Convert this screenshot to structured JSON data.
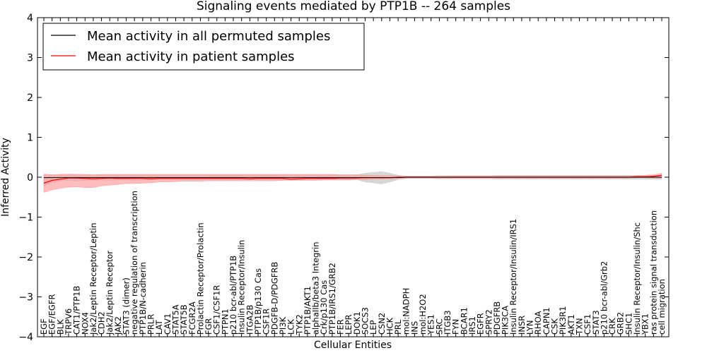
{
  "chart_data": {
    "type": "line",
    "title": "Signaling events mediated by PTP1B -- 264 samples",
    "xlabel": "Cellular Entities",
    "ylabel": "Inferred Activity",
    "ylim": [
      -4,
      4
    ],
    "yticks": [
      -4,
      -3,
      -2,
      -1,
      0,
      1,
      2,
      3,
      4
    ],
    "ytick_labels": [
      "−4",
      "−3",
      "−2",
      "−1",
      "0",
      "1",
      "2",
      "3",
      "4"
    ],
    "legend": {
      "position": "top-left",
      "entries": [
        {
          "label": "Mean activity in all permuted samples",
          "color": "#000000"
        },
        {
          "label": "Mean activity in patient samples",
          "color": "#ff0000"
        }
      ]
    },
    "categories": [
      "EGF",
      "EGF/EGFR",
      "BLK",
      "TRPV6",
      "CAT1/PTP1B",
      "NOX4",
      "Jak2/Leptin Receptor/Leptin",
      "CDH2",
      "Jak2/Leptin Receptor",
      "JAK2",
      "STAT3 (dimer)",
      "negative regulation of transcription",
      "PTP1B/N-cadherin",
      "PRLR",
      "LAT",
      "CAV1",
      "STAT5A",
      "STAT5B",
      "FCGR2A",
      "Prolactin Receptor/Prolactin",
      "FGR",
      "CSF1/CSF1R",
      "PTPN1",
      "p210 bcr-abl/PTP1B",
      "Insulin Receptor/Insulin",
      "ITGA2B",
      "PTP1B/p130 Cas",
      "CSF1R",
      "PDGFB-D/PDGFRB",
      "PI3K",
      "LCK",
      "TYK2",
      "PTP1B/AKT1",
      "alphaIIb/beta3 Integrin",
      "Crk/p130 Cas",
      "PTP1B/IRS1/GRB2",
      "FER",
      "LEPR",
      "DOK1",
      "SOCS3",
      "LEP",
      "CSN2",
      "HCK",
      "PRL",
      "mol:NADPH",
      "INS",
      "mol:H2O2",
      "YES1",
      "SRC",
      "ITGB3",
      "FYN",
      "BCAR1",
      "IRS1",
      "EGFR",
      "SPRY2",
      "PDGFRB",
      "PIK3CA",
      "Insulin Receptor/Insulin/IRS1",
      "INSR",
      "LYN",
      "RHOA",
      "CAPN1",
      "CSK",
      "PIK3R1",
      "AKT1",
      "TXN",
      "CSF1",
      "STAT3",
      "p210 bcr-abl/Grb2",
      "CRK",
      "GRB2",
      "SHC1",
      "Insulin Receptor/Insulin/Shc",
      "YBX1",
      "ras protein signal transduction",
      "cell migration"
    ],
    "series": [
      {
        "name": "Mean activity in all permuted samples",
        "color": "#000000",
        "band_color": "#c8c8c8",
        "values": [
          -0.01,
          -0.01,
          -0.01,
          -0.01,
          -0.01,
          -0.01,
          -0.01,
          -0.01,
          -0.01,
          -0.01,
          -0.01,
          -0.01,
          -0.01,
          -0.01,
          -0.01,
          -0.01,
          -0.01,
          -0.01,
          -0.01,
          -0.01,
          -0.01,
          -0.01,
          -0.01,
          -0.01,
          -0.01,
          -0.01,
          -0.01,
          -0.01,
          -0.01,
          -0.01,
          -0.01,
          -0.01,
          -0.01,
          -0.01,
          -0.01,
          -0.01,
          -0.01,
          -0.01,
          -0.01,
          -0.01,
          -0.01,
          -0.01,
          -0.01,
          -0.01,
          0.0,
          0.0,
          0.0,
          0.0,
          0.0,
          0.0,
          0.0,
          0.0,
          0.0,
          0.0,
          0.0,
          0.0,
          0.0,
          0.0,
          0.0,
          0.0,
          0.0,
          0.0,
          0.0,
          0.0,
          0.0,
          0.0,
          0.0,
          0.0,
          0.0,
          0.0,
          0.0,
          0.0,
          0.0,
          0.0,
          0.0,
          0.0
        ],
        "band_low": [
          -0.22,
          -0.14,
          -0.09,
          -0.08,
          -0.1,
          -0.08,
          -0.09,
          -0.07,
          -0.08,
          -0.07,
          -0.07,
          -0.08,
          -0.07,
          -0.07,
          -0.06,
          -0.06,
          -0.06,
          -0.06,
          -0.06,
          -0.06,
          -0.06,
          -0.06,
          -0.06,
          -0.06,
          -0.06,
          -0.06,
          -0.06,
          -0.06,
          -0.06,
          -0.06,
          -0.06,
          -0.06,
          -0.06,
          -0.06,
          -0.06,
          -0.06,
          -0.06,
          -0.06,
          -0.06,
          -0.12,
          -0.14,
          -0.17,
          -0.12,
          -0.06,
          -0.03,
          -0.03,
          -0.03,
          -0.03,
          -0.04,
          -0.04,
          -0.04,
          -0.04,
          -0.04,
          -0.04,
          -0.04,
          -0.05,
          -0.05,
          -0.05,
          -0.05,
          -0.05,
          -0.05,
          -0.05,
          -0.05,
          -0.05,
          -0.05,
          -0.05,
          -0.05,
          -0.05,
          -0.05,
          -0.05,
          -0.05,
          -0.05,
          -0.05,
          -0.05,
          -0.05,
          -0.05
        ],
        "band_high": [
          0.06,
          0.06,
          0.06,
          0.06,
          0.06,
          0.06,
          0.06,
          0.06,
          0.06,
          0.06,
          0.06,
          0.06,
          0.06,
          0.06,
          0.06,
          0.06,
          0.06,
          0.06,
          0.06,
          0.06,
          0.06,
          0.06,
          0.06,
          0.06,
          0.06,
          0.06,
          0.06,
          0.06,
          0.06,
          0.06,
          0.06,
          0.06,
          0.06,
          0.06,
          0.06,
          0.06,
          0.06,
          0.06,
          0.06,
          0.1,
          0.12,
          0.14,
          0.1,
          0.05,
          0.03,
          0.03,
          0.03,
          0.03,
          0.04,
          0.04,
          0.04,
          0.04,
          0.04,
          0.04,
          0.04,
          0.05,
          0.05,
          0.05,
          0.05,
          0.05,
          0.05,
          0.05,
          0.05,
          0.05,
          0.05,
          0.05,
          0.05,
          0.05,
          0.05,
          0.05,
          0.05,
          0.05,
          0.05,
          0.05,
          0.05,
          0.05
        ]
      },
      {
        "name": "Mean activity in patient samples",
        "color": "#ff0000",
        "band_color": "#ff9999",
        "values": [
          -0.15,
          -0.08,
          -0.05,
          -0.02,
          -0.02,
          -0.03,
          -0.04,
          -0.03,
          -0.02,
          -0.03,
          -0.03,
          -0.03,
          -0.03,
          -0.04,
          -0.03,
          -0.03,
          -0.03,
          -0.03,
          -0.03,
          -0.03,
          -0.03,
          -0.03,
          -0.03,
          -0.03,
          -0.03,
          -0.04,
          -0.03,
          -0.03,
          -0.03,
          -0.03,
          -0.05,
          -0.04,
          -0.03,
          -0.03,
          -0.03,
          -0.03,
          -0.02,
          -0.02,
          -0.02,
          -0.01,
          -0.01,
          -0.01,
          -0.01,
          0.0,
          0.0,
          0.0,
          0.0,
          0.0,
          0.0,
          0.0,
          0.0,
          0.0,
          0.0,
          0.0,
          0.0,
          0.0,
          0.0,
          0.0,
          0.0,
          0.0,
          0.0,
          0.0,
          0.0,
          0.0,
          0.0,
          0.0,
          0.0,
          0.0,
          0.0,
          0.0,
          0.0,
          0.0,
          0.01,
          0.01,
          0.02,
          0.05
        ],
        "band_low": [
          -0.38,
          -0.32,
          -0.28,
          -0.25,
          -0.24,
          -0.26,
          -0.26,
          -0.22,
          -0.2,
          -0.18,
          -0.16,
          -0.16,
          -0.15,
          -0.14,
          -0.12,
          -0.12,
          -0.11,
          -0.1,
          -0.1,
          -0.1,
          -0.09,
          -0.09,
          -0.09,
          -0.09,
          -0.09,
          -0.09,
          -0.09,
          -0.09,
          -0.09,
          -0.08,
          -0.08,
          -0.08,
          -0.08,
          -0.08,
          -0.07,
          -0.07,
          -0.07,
          -0.07,
          -0.06,
          -0.06,
          -0.05,
          -0.05,
          -0.04,
          -0.03,
          -0.02,
          -0.02,
          -0.02,
          -0.02,
          -0.02,
          -0.02,
          -0.02,
          -0.02,
          -0.02,
          -0.02,
          -0.02,
          -0.02,
          -0.02,
          -0.02,
          -0.02,
          -0.02,
          -0.02,
          -0.02,
          -0.02,
          -0.02,
          -0.02,
          -0.02,
          -0.02,
          -0.02,
          -0.02,
          -0.02,
          -0.02,
          -0.02,
          -0.01,
          -0.01,
          -0.02,
          -0.02
        ],
        "band_high": [
          0.08,
          0.06,
          0.07,
          0.08,
          0.07,
          0.07,
          0.06,
          0.07,
          0.07,
          0.07,
          0.07,
          0.07,
          0.07,
          0.07,
          0.07,
          0.07,
          0.07,
          0.07,
          0.07,
          0.07,
          0.07,
          0.07,
          0.07,
          0.07,
          0.07,
          0.07,
          0.07,
          0.07,
          0.07,
          0.07,
          0.07,
          0.07,
          0.07,
          0.07,
          0.07,
          0.07,
          0.06,
          0.06,
          0.06,
          0.05,
          0.05,
          0.04,
          0.04,
          0.03,
          0.02,
          0.02,
          0.02,
          0.02,
          0.02,
          0.02,
          0.03,
          0.03,
          0.03,
          0.03,
          0.03,
          0.03,
          0.03,
          0.03,
          0.03,
          0.03,
          0.03,
          0.03,
          0.03,
          0.03,
          0.03,
          0.03,
          0.03,
          0.03,
          0.03,
          0.03,
          0.03,
          0.03,
          0.04,
          0.05,
          0.06,
          0.1
        ]
      }
    ]
  }
}
